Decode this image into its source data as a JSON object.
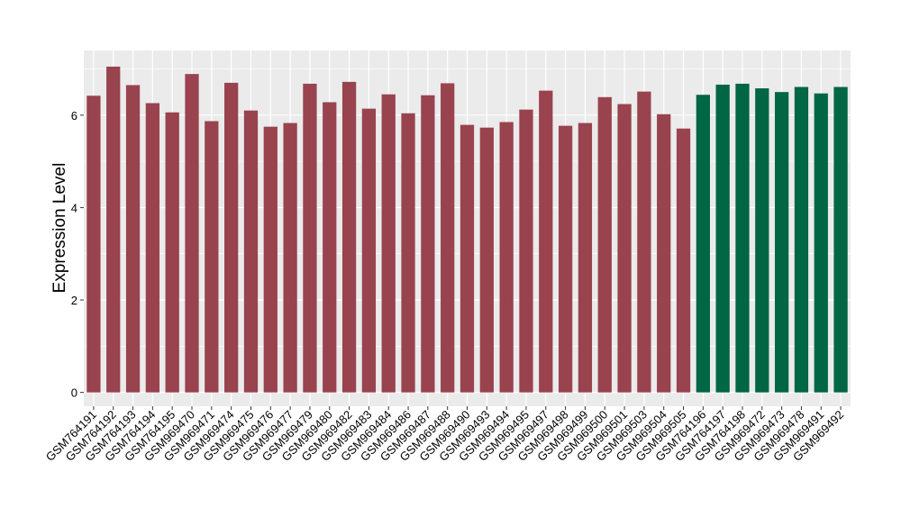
{
  "chart_data": {
    "type": "bar",
    "title": "",
    "xlabel": "",
    "ylabel": "Expression Level",
    "ylim": [
      -0.3,
      7.4
    ],
    "yticks": [
      0,
      2,
      4,
      6
    ],
    "grid": true,
    "categories": [
      "GSM764191",
      "GSM764192",
      "GSM764193",
      "GSM764194",
      "GSM764195",
      "GSM969470",
      "GSM969471",
      "GSM969474",
      "GSM969475",
      "GSM969476",
      "GSM969477",
      "GSM969479",
      "GSM969480",
      "GSM969482",
      "GSM969483",
      "GSM969484",
      "GSM969486",
      "GSM969487",
      "GSM969488",
      "GSM969490",
      "GSM969493",
      "GSM969494",
      "GSM969495",
      "GSM969497",
      "GSM969498",
      "GSM969499",
      "GSM969500",
      "GSM969501",
      "GSM969503",
      "GSM969504",
      "GSM969505",
      "GSM764196",
      "GSM764197",
      "GSM764198",
      "GSM969472",
      "GSM969473",
      "GSM969478",
      "GSM969491",
      "GSM969492"
    ],
    "values": [
      6.42,
      7.05,
      6.65,
      6.26,
      6.06,
      6.89,
      5.87,
      6.7,
      6.1,
      5.75,
      5.83,
      6.68,
      6.28,
      6.72,
      6.14,
      6.45,
      6.04,
      6.43,
      6.69,
      5.79,
      5.73,
      5.85,
      6.12,
      6.53,
      5.77,
      5.83,
      6.39,
      6.24,
      6.51,
      6.02,
      5.71,
      6.44,
      6.66,
      6.68,
      6.58,
      6.5,
      6.61,
      6.47,
      6.61
    ],
    "groups": [
      0,
      0,
      0,
      0,
      0,
      0,
      0,
      0,
      0,
      0,
      0,
      0,
      0,
      0,
      0,
      0,
      0,
      0,
      0,
      0,
      0,
      0,
      0,
      0,
      0,
      0,
      0,
      0,
      0,
      0,
      0,
      1,
      1,
      1,
      1,
      1,
      1,
      1,
      1
    ],
    "colors": {
      "group_0": "#99434f",
      "group_1": "#006644",
      "panel_background": "#ebebeb",
      "grid": "#ffffff",
      "axis_text": "#000000"
    }
  }
}
